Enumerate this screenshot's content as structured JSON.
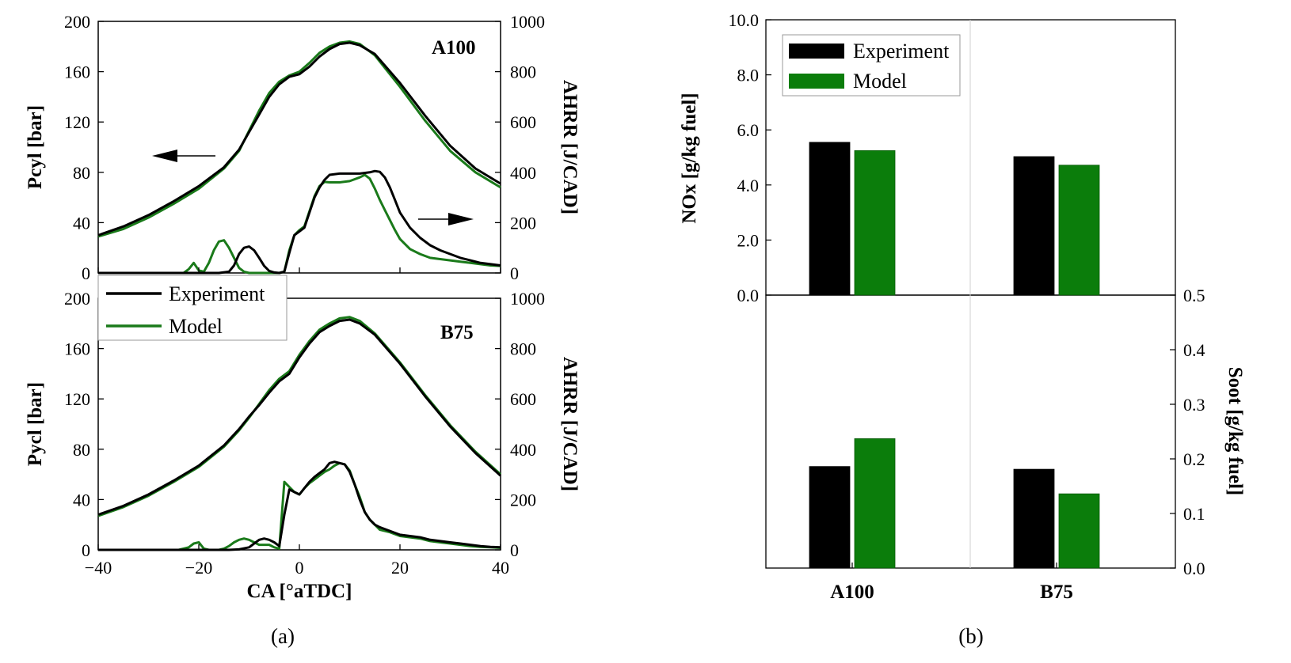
{
  "colors": {
    "experiment": "#000000",
    "model": "#1a7a1a",
    "model_bar": "#0b7d0b"
  },
  "caption_a": "(a)",
  "caption_b": "(b)",
  "legend": {
    "experiment": "Experiment",
    "model": "Model"
  },
  "chart_data": [
    {
      "id": "a_top",
      "type": "line",
      "case_label": "A100",
      "xlim": [
        -40,
        40
      ],
      "ylabel_left": "Pcyl [bar]",
      "ylim_left": [
        0,
        200
      ],
      "yticks_left": [
        0,
        40,
        80,
        120,
        160,
        200
      ],
      "ylabel_right": "AHRR [J/CAD]",
      "ylim_right": [
        0,
        1000
      ],
      "yticks_right": [
        0,
        200,
        400,
        600,
        800,
        1000
      ],
      "series": [
        {
          "name": "Experiment",
          "quantity": "pressure",
          "axis": "left",
          "x": [
            -40,
            -35,
            -30,
            -25,
            -20,
            -15,
            -12,
            -10,
            -8,
            -6,
            -4,
            -2,
            0,
            2,
            4,
            6,
            8,
            10,
            12,
            15,
            20,
            25,
            30,
            35,
            40
          ],
          "y": [
            30,
            37,
            46,
            57,
            69,
            84,
            98,
            112,
            126,
            140,
            150,
            156,
            158,
            164,
            172,
            178,
            182,
            183,
            181,
            174,
            151,
            125,
            101,
            83,
            71
          ]
        },
        {
          "name": "Model",
          "quantity": "pressure",
          "axis": "left",
          "x": [
            -40,
            -35,
            -30,
            -25,
            -20,
            -15,
            -12,
            -10,
            -8,
            -6,
            -4,
            -2,
            0,
            2,
            4,
            6,
            8,
            10,
            12,
            15,
            20,
            25,
            30,
            35,
            40
          ],
          "y": [
            29,
            35,
            44,
            55,
            67,
            83,
            97,
            113,
            129,
            143,
            152,
            157,
            160,
            167,
            175,
            180,
            183,
            184,
            182,
            173,
            148,
            121,
            97,
            80,
            68
          ]
        },
        {
          "name": "Experiment",
          "quantity": "AHRR",
          "axis": "right",
          "x": [
            -40,
            -30,
            -20,
            -16,
            -14,
            -13,
            -12,
            -11,
            -10,
            -9,
            -8,
            -7,
            -6,
            -5,
            -4,
            -3,
            -2,
            -1,
            0,
            1,
            2,
            3,
            4,
            5,
            6,
            8,
            10,
            12,
            14,
            15,
            16,
            17,
            18,
            19,
            20,
            22,
            24,
            26,
            28,
            30,
            32,
            34,
            36,
            38,
            40
          ],
          "y": [
            0,
            0,
            0,
            0,
            5,
            30,
            75,
            100,
            105,
            90,
            60,
            28,
            8,
            2,
            0,
            5,
            80,
            150,
            165,
            180,
            240,
            300,
            340,
            370,
            390,
            395,
            395,
            395,
            400,
            405,
            402,
            380,
            340,
            290,
            240,
            180,
            140,
            110,
            90,
            75,
            60,
            50,
            40,
            35,
            30
          ]
        },
        {
          "name": "Model",
          "quantity": "AHRR",
          "axis": "right",
          "x": [
            -40,
            -29,
            -26,
            -23,
            -22,
            -21,
            -20,
            -19,
            -18,
            -17,
            -16,
            -15,
            -14,
            -13,
            -12,
            -11,
            -10,
            -9,
            -8,
            -7,
            -6,
            -5,
            -4,
            -3,
            -2,
            -1,
            0,
            1,
            2,
            3,
            4,
            5,
            6,
            8,
            10,
            12,
            13,
            14,
            15,
            16,
            17,
            18,
            19,
            20,
            22,
            24,
            26,
            28,
            30,
            32,
            34,
            36,
            38,
            40
          ],
          "y": [
            0,
            0,
            0,
            0,
            15,
            40,
            10,
            5,
            40,
            90,
            125,
            130,
            100,
            60,
            20,
            5,
            0,
            0,
            0,
            0,
            0,
            0,
            0,
            5,
            90,
            150,
            170,
            185,
            245,
            305,
            345,
            362,
            360,
            360,
            365,
            380,
            390,
            375,
            335,
            290,
            250,
            210,
            170,
            135,
            95,
            75,
            60,
            55,
            50,
            45,
            40,
            35,
            30,
            28
          ]
        }
      ]
    },
    {
      "id": "a_bottom",
      "type": "line",
      "case_label": "B75",
      "xlim": [
        -40,
        40
      ],
      "xticks": [
        -40,
        -20,
        0,
        20,
        40
      ],
      "xlabel": "CA [°aTDC]",
      "ylabel_left": "Pycl [bar]",
      "ylim_left": [
        0,
        200
      ],
      "yticks_left": [
        0,
        40,
        80,
        120,
        160,
        200
      ],
      "ylabel_right": "AHRR [J/CAD]",
      "ylim_right": [
        0,
        1000
      ],
      "yticks_right": [
        0,
        200,
        400,
        600,
        800,
        1000
      ],
      "series": [
        {
          "name": "Experiment",
          "quantity": "pressure",
          "axis": "left",
          "x": [
            -40,
            -35,
            -30,
            -25,
            -20,
            -15,
            -12,
            -10,
            -8,
            -6,
            -4,
            -2,
            0,
            2,
            4,
            6,
            8,
            10,
            12,
            15,
            20,
            25,
            30,
            35,
            40
          ],
          "y": [
            28,
            35,
            44,
            55,
            67,
            83,
            96,
            106,
            115,
            125,
            134,
            140,
            153,
            164,
            173,
            178,
            182,
            183,
            180,
            171,
            148,
            122,
            98,
            77,
            59
          ]
        },
        {
          "name": "Model",
          "quantity": "pressure",
          "axis": "left",
          "x": [
            -40,
            -35,
            -30,
            -25,
            -20,
            -15,
            -12,
            -10,
            -8,
            -6,
            -4,
            -2,
            0,
            2,
            4,
            6,
            8,
            10,
            12,
            15,
            20,
            25,
            30,
            35,
            40
          ],
          "y": [
            27,
            34,
            43,
            54,
            66,
            82,
            95,
            105,
            116,
            127,
            136,
            142,
            155,
            166,
            175,
            180,
            184,
            185,
            182,
            172,
            149,
            123,
            99,
            78,
            60
          ]
        },
        {
          "name": "Experiment",
          "quantity": "AHRR",
          "axis": "right",
          "x": [
            -40,
            -14,
            -12,
            -10,
            -9,
            -8,
            -7,
            -6,
            -5,
            -4,
            -3,
            -2,
            -1,
            0,
            1,
            2,
            3,
            4,
            5,
            6,
            7,
            8,
            9,
            10,
            11,
            12,
            13,
            14,
            15,
            16,
            18,
            20,
            22,
            24,
            26,
            28,
            30,
            32,
            34,
            36,
            38,
            40
          ],
          "y": [
            0,
            0,
            2,
            10,
            25,
            40,
            45,
            40,
            30,
            15,
            140,
            240,
            230,
            220,
            245,
            270,
            290,
            305,
            320,
            345,
            350,
            345,
            340,
            310,
            260,
            200,
            150,
            120,
            100,
            90,
            75,
            60,
            55,
            50,
            40,
            35,
            30,
            25,
            20,
            15,
            12,
            10
          ]
        },
        {
          "name": "Model",
          "quantity": "AHRR",
          "axis": "right",
          "x": [
            -40,
            -29,
            -24,
            -22,
            -21,
            -20,
            -19,
            -18,
            -17,
            -16,
            -15,
            -14,
            -13,
            -12,
            -11,
            -10,
            -9,
            -8,
            -7,
            -6,
            -5,
            -4,
            -3,
            -2,
            -1,
            0,
            1,
            2,
            3,
            4,
            5,
            6,
            7,
            8,
            9,
            10,
            11,
            12,
            13,
            14,
            15,
            16,
            18,
            20,
            22,
            24,
            26,
            28,
            30,
            32,
            34,
            36,
            38,
            40
          ],
          "y": [
            0,
            0,
            0,
            10,
            25,
            30,
            5,
            0,
            0,
            0,
            5,
            15,
            30,
            40,
            45,
            40,
            30,
            20,
            20,
            20,
            10,
            5,
            270,
            250,
            230,
            220,
            245,
            265,
            280,
            295,
            310,
            320,
            335,
            345,
            340,
            315,
            260,
            210,
            150,
            120,
            100,
            80,
            70,
            55,
            50,
            45,
            35,
            30,
            25,
            20,
            15,
            12,
            10,
            8
          ]
        }
      ]
    },
    {
      "id": "b_top",
      "type": "bar",
      "categories": [
        "A100",
        "B75"
      ],
      "ylabel": "NOx [g/kg fuel]",
      "ylim": [
        0,
        10
      ],
      "ytick_labels": [
        "0.0",
        "2.0",
        "4.0",
        "6.0",
        "8.0",
        "10.0"
      ],
      "series": [
        {
          "name": "Experiment",
          "values": [
            5.55,
            5.03
          ]
        },
        {
          "name": "Model",
          "values": [
            5.25,
            4.72
          ]
        }
      ]
    },
    {
      "id": "b_bottom",
      "type": "bar",
      "categories": [
        "A100",
        "B75"
      ],
      "ylabel": "Soot [g/kg fuel]",
      "ylim": [
        0,
        0.5
      ],
      "ytick_labels": [
        "0.0",
        "0.1",
        "0.2",
        "0.3",
        "0.4",
        "0.5"
      ],
      "series": [
        {
          "name": "Experiment",
          "values": [
            0.186,
            0.181
          ]
        },
        {
          "name": "Model",
          "values": [
            0.237,
            0.136
          ]
        }
      ]
    }
  ]
}
